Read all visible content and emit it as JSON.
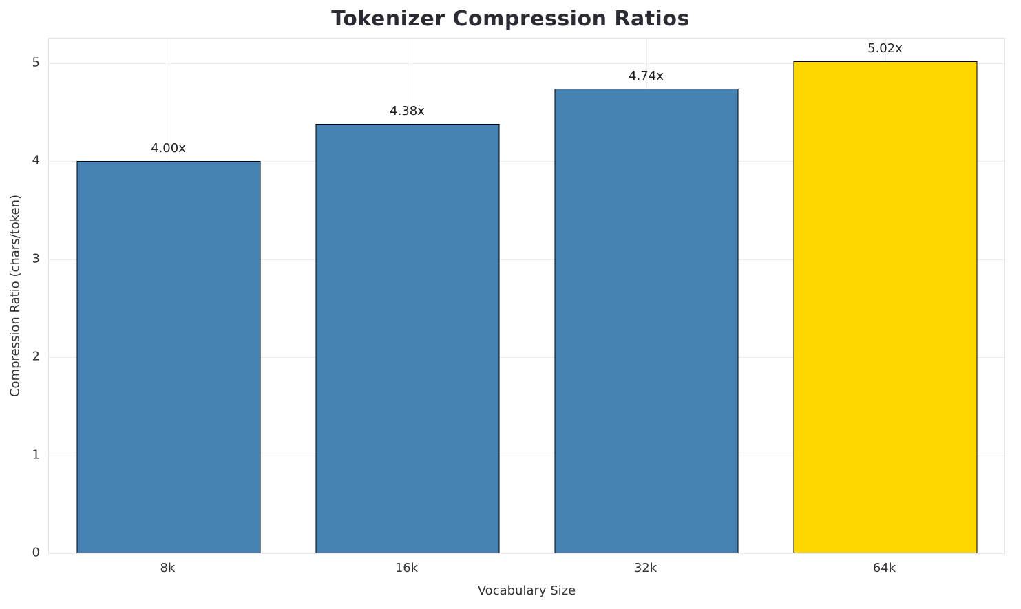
{
  "chart_data": {
    "type": "bar",
    "title": "Tokenizer Compression Ratios",
    "xlabel": "Vocabulary Size",
    "ylabel": "Compression Ratio (chars/token)",
    "categories": [
      "8k",
      "16k",
      "32k",
      "64k"
    ],
    "values": [
      4.0,
      4.38,
      4.74,
      5.02
    ],
    "bar_labels": [
      "4.00x",
      "4.38x",
      "4.74x",
      "5.02x"
    ],
    "bar_colors": [
      "#4682b4",
      "#4682b4",
      "#4682b4",
      "#ffd700"
    ],
    "bar_edge_color": "#000000",
    "ylim": [
      0,
      5.25
    ],
    "yticks": [
      "0",
      "1",
      "2",
      "3",
      "4",
      "5"
    ],
    "grid": true,
    "legend": "none",
    "background": "#ffffff"
  }
}
